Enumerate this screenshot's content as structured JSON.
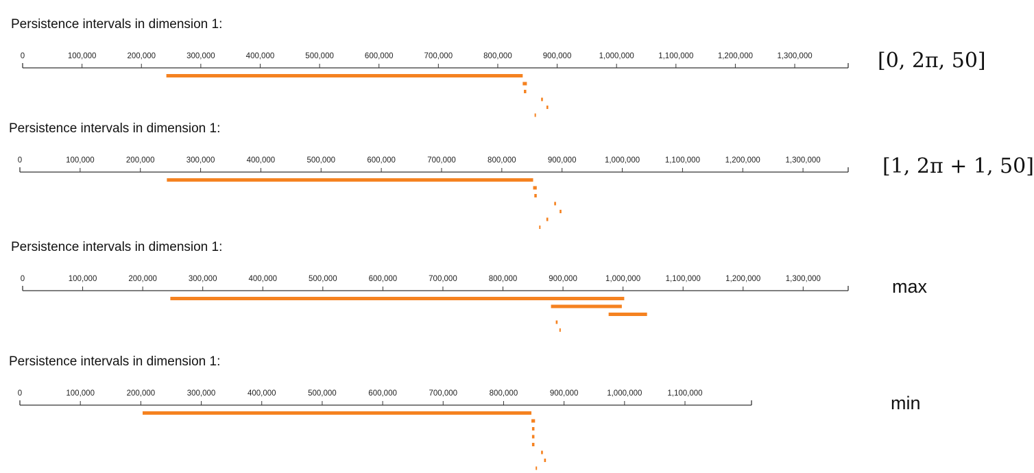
{
  "chart_data": [
    {
      "type": "barcode",
      "title": "Persistence intervals in dimension 1:",
      "annotation": "[0, 2π, 50]",
      "xlim": [
        0,
        1390000
      ],
      "tick_values": [
        0,
        100000,
        200000,
        300000,
        400000,
        500000,
        600000,
        700000,
        800000,
        900000,
        1000000,
        1100000,
        1200000,
        1300000
      ],
      "tick_labels": [
        "0",
        "100,000",
        "200,000",
        "300,000",
        "400,000",
        "500,000",
        "600,000",
        "700,000",
        "800,000",
        "900,000",
        "1,000,000",
        "1,100,000",
        "1,200,000",
        "1,300,000"
      ],
      "color": "#f58220",
      "intervals": [
        {
          "birth": 242000,
          "death": 842000
        },
        {
          "birth": 842000,
          "death": 849000
        },
        {
          "birth": 844000,
          "death": 848000
        },
        {
          "birth": 873000,
          "death": 876000
        },
        {
          "birth": 882000,
          "death": 885000
        },
        {
          "birth": 862000,
          "death": 864000
        }
      ]
    },
    {
      "type": "barcode",
      "title": "Persistence intervals in dimension 1:",
      "annotation": "[1, 2π + 1, 50]",
      "xlim": [
        0,
        1375000
      ],
      "tick_values": [
        0,
        100000,
        200000,
        300000,
        400000,
        500000,
        600000,
        700000,
        800000,
        900000,
        1000000,
        1100000,
        1200000,
        1300000
      ],
      "tick_labels": [
        "0",
        "100,000",
        "200,000",
        "300,000",
        "400,000",
        "500,000",
        "600,000",
        "700,000",
        "800,000",
        "900,000",
        "1,000,000",
        "1,100,000",
        "1,200,000",
        "1,300,000"
      ],
      "color": "#f58220",
      "intervals": [
        {
          "birth": 244000,
          "death": 852000
        },
        {
          "birth": 852000,
          "death": 858000
        },
        {
          "birth": 854000,
          "death": 858000
        },
        {
          "birth": 887000,
          "death": 890000
        },
        {
          "birth": 896000,
          "death": 899000
        },
        {
          "birth": 874000,
          "death": 877000
        },
        {
          "birth": 862000,
          "death": 864000
        }
      ]
    },
    {
      "type": "barcode",
      "title": "Persistence intervals in dimension 1:",
      "annotation": "max",
      "xlim": [
        0,
        1375000
      ],
      "tick_values": [
        0,
        100000,
        200000,
        300000,
        400000,
        500000,
        600000,
        700000,
        800000,
        900000,
        1000000,
        1100000,
        1200000,
        1300000
      ],
      "tick_labels": [
        "0",
        "100,000",
        "200,000",
        "300,000",
        "400,000",
        "500,000",
        "600,000",
        "700,000",
        "800,000",
        "900,000",
        "1,000,000",
        "1,100,000",
        "1,200,000",
        "1,300,000"
      ],
      "color": "#f58220",
      "intervals": [
        {
          "birth": 246000,
          "death": 1002000
        },
        {
          "birth": 880000,
          "death": 998000
        },
        {
          "birth": 976000,
          "death": 1040000
        },
        {
          "birth": 888000,
          "death": 891000
        },
        {
          "birth": 894000,
          "death": 896000
        }
      ]
    },
    {
      "type": "barcode",
      "title": "Persistence intervals in dimension 1:",
      "annotation": "min",
      "xlim": [
        0,
        1210000
      ],
      "tick_values": [
        0,
        100000,
        200000,
        300000,
        400000,
        500000,
        600000,
        700000,
        800000,
        900000,
        1000000,
        1100000
      ],
      "tick_labels": [
        "0",
        "100,000",
        "200,000",
        "300,000",
        "400,000",
        "500,000",
        "600,000",
        "700,000",
        "800,000",
        "900,000",
        "1,000,000",
        "1,100,000"
      ],
      "color": "#f58220",
      "intervals": [
        {
          "birth": 203000,
          "death": 846000
        },
        {
          "birth": 846000,
          "death": 852000
        },
        {
          "birth": 847000,
          "death": 851000
        },
        {
          "birth": 847000,
          "death": 851000
        },
        {
          "birth": 847000,
          "death": 851000
        },
        {
          "birth": 862000,
          "death": 865000
        },
        {
          "birth": 867000,
          "death": 870000
        },
        {
          "birth": 853000,
          "death": 855000
        }
      ]
    }
  ]
}
